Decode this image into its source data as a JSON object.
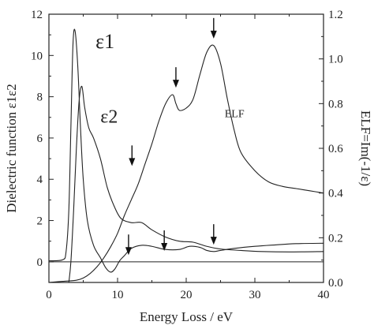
{
  "chart_data": {
    "type": "line",
    "xlabel": "Energy Loss / eV",
    "ylabel_left": "Dielectric function ε1ε2",
    "ylabel_right": "ELF=Im(-1/ε)",
    "xlim": [
      0,
      40
    ],
    "ylim_left": [
      -1,
      12
    ],
    "ylim_right": [
      0,
      1.2
    ],
    "x_ticks": [
      0,
      10,
      20,
      30,
      40
    ],
    "y_left_ticks": [
      0,
      2,
      4,
      6,
      8,
      10,
      12
    ],
    "y_right_ticks": [
      0.0,
      0.2,
      0.4,
      0.6,
      0.8,
      1.0,
      1.2
    ],
    "y_right_tick_labels": [
      "0.0",
      "0.2",
      "0.4",
      "0.6",
      "0.8",
      "1.0",
      "1.2"
    ],
    "grid": false,
    "series": [
      {
        "name": "ε1",
        "axis": "left",
        "x": [
          0,
          2.0,
          2.5,
          2.9,
          3.2,
          3.5,
          3.8,
          4.2,
          4.6,
          5.0,
          5.6,
          6.5,
          7.5,
          8.3,
          9.0,
          9.6,
          10.3,
          11.0,
          12.0,
          13.5,
          15,
          17,
          19,
          20.5,
          22,
          23,
          24,
          25,
          27,
          30,
          33,
          36,
          40
        ],
        "y": [
          0.05,
          0.1,
          0.5,
          2.5,
          6.5,
          10.5,
          11.2,
          9.5,
          6.5,
          4.0,
          2.0,
          0.8,
          0.2,
          -0.3,
          -0.5,
          -0.35,
          0.05,
          0.3,
          0.65,
          0.8,
          0.75,
          0.6,
          0.6,
          0.75,
          0.7,
          0.55,
          0.5,
          0.55,
          0.65,
          0.75,
          0.82,
          0.88,
          0.9
        ]
      },
      {
        "name": "ε2",
        "axis": "left",
        "x": [
          2.9,
          3.2,
          3.6,
          4.0,
          4.4,
          4.8,
          5.2,
          5.8,
          6.5,
          7.5,
          8.5,
          9.5,
          10.5,
          12,
          13.5,
          15,
          17,
          19,
          21,
          23,
          25,
          28,
          31,
          35,
          40
        ],
        "y": [
          -1.0,
          0.0,
          2.5,
          5.5,
          7.8,
          8.5,
          7.5,
          6.5,
          6.0,
          5.0,
          3.6,
          2.7,
          2.1,
          1.9,
          1.9,
          1.55,
          1.2,
          1.0,
          0.95,
          0.75,
          0.62,
          0.55,
          0.5,
          0.48,
          0.5
        ]
      },
      {
        "name": "ELF",
        "axis": "right",
        "x": [
          0,
          2,
          4,
          5,
          6,
          7,
          8,
          9,
          10,
          11,
          12,
          13,
          14,
          15,
          16,
          17,
          18,
          18.5,
          19,
          20,
          21,
          22,
          23,
          24,
          25,
          26,
          27,
          28,
          30,
          32,
          34,
          36,
          38,
          40
        ],
        "y": [
          0.0,
          0.005,
          0.01,
          0.02,
          0.04,
          0.07,
          0.11,
          0.16,
          0.22,
          0.3,
          0.37,
          0.44,
          0.53,
          0.62,
          0.72,
          0.8,
          0.84,
          0.8,
          0.77,
          0.78,
          0.82,
          0.93,
          1.03,
          1.06,
          0.98,
          0.82,
          0.68,
          0.58,
          0.5,
          0.45,
          0.43,
          0.42,
          0.41,
          0.4
        ]
      }
    ],
    "series_labels": [
      "ε1",
      "ε2",
      "ELF"
    ],
    "annotations": [
      {
        "type": "arrow",
        "axis": "right",
        "x": 12.1,
        "y": 0.5
      },
      {
        "type": "arrow",
        "axis": "right",
        "x": 18.5,
        "y": 0.85
      },
      {
        "type": "arrow",
        "axis": "right",
        "x": 24.0,
        "y": 1.07
      },
      {
        "type": "arrow",
        "axis": "left",
        "x": 11.6,
        "y": 0.1
      },
      {
        "type": "arrow",
        "axis": "left",
        "x": 16.8,
        "y": 0.3
      },
      {
        "type": "arrow",
        "axis": "left",
        "x": 24.0,
        "y": 0.6
      }
    ]
  }
}
